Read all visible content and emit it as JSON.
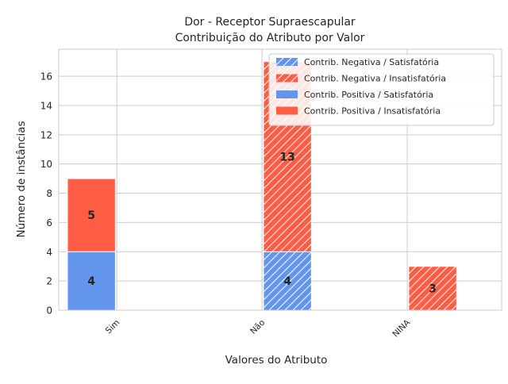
{
  "chart_data": {
    "type": "bar",
    "title": "Dor - Receptor Supraescapular",
    "subtitle": "Contribuição do Atributo por Valor",
    "xlabel": "Valores do Atributo",
    "ylabel": "Número de instâncias",
    "categories": [
      "Sim",
      "Não",
      "NINA"
    ],
    "ylim": [
      0,
      17.85
    ],
    "yticks": [
      0,
      2,
      4,
      6,
      8,
      10,
      12,
      14,
      16
    ],
    "ytick_labels": [
      "0",
      "2",
      "4",
      "6",
      "8",
      "10",
      "12",
      "14",
      "16"
    ],
    "grid": true,
    "legend_position": "top-right",
    "colors": {
      "satisfatoria": "#6495ED",
      "insatisfatoria": "#FF5E45",
      "grid": "#cccccc",
      "hatch": "#ffffff"
    },
    "series": [
      {
        "name": "Contrib. Negativa / Satisfatória",
        "group": "negativa",
        "hatched": true,
        "color": "#6495ED",
        "values": [
          0,
          4,
          0
        ]
      },
      {
        "name": "Contrib. Negativa / Insatisfatória",
        "group": "negativa",
        "hatched": true,
        "color": "#FF5E45",
        "values": [
          0,
          13,
          3
        ]
      },
      {
        "name": "Contrib. Positiva / Satisfatória",
        "group": "positiva",
        "hatched": false,
        "color": "#6495ED",
        "values": [
          4,
          0,
          0
        ]
      },
      {
        "name": "Contrib. Positiva / Insatisfatória",
        "group": "positiva",
        "hatched": false,
        "color": "#FF5E45",
        "values": [
          5,
          0,
          0
        ]
      }
    ]
  }
}
